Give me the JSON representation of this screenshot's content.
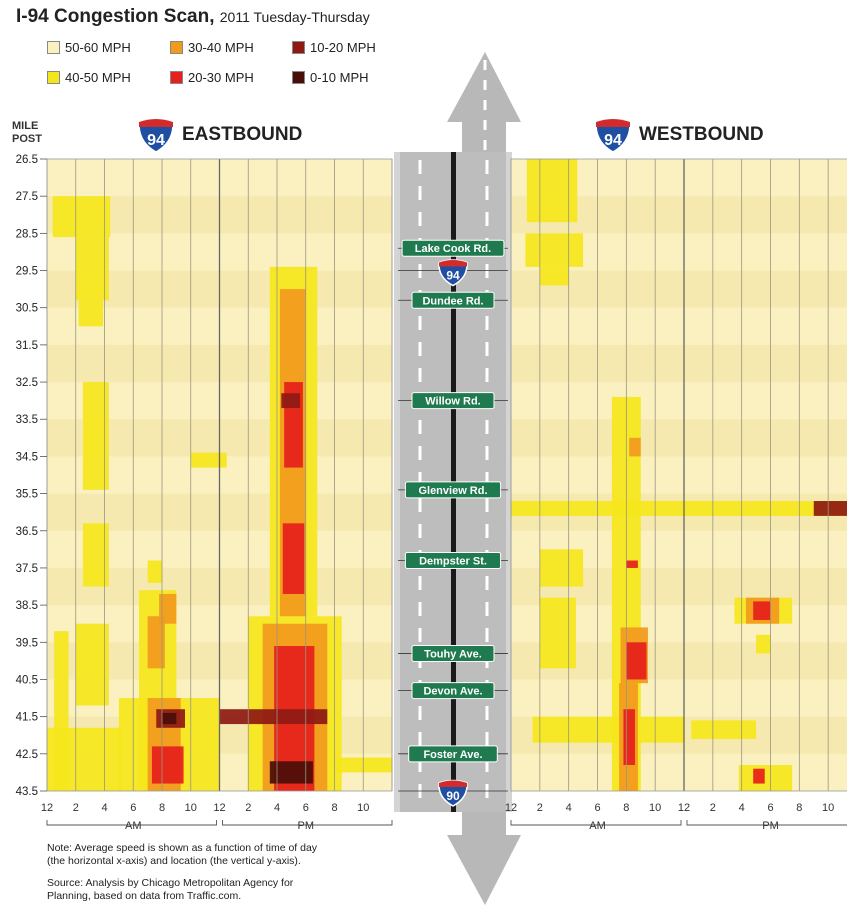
{
  "header": {
    "title": "I-94 Congestion Scan,",
    "subtitle": "2011 Tuesday-Thursday"
  },
  "legend": [
    {
      "label": "50-60 MPH",
      "color": "#fbf1c0"
    },
    {
      "label": "30-40 MPH",
      "color": "#f19a1e"
    },
    {
      "label": "10-20 MPH",
      "color": "#8e1a13"
    },
    {
      "label": "40-50 MPH",
      "color": "#f5e61c"
    },
    {
      "label": "20-30 MPH",
      "color": "#e6201c"
    },
    {
      "label": "0-10 MPH",
      "color": "#4a0e08"
    }
  ],
  "axis": {
    "mile_label_1": "MILE",
    "mile_label_2": "POST",
    "x_ticks": [
      "12",
      "2",
      "4",
      "6",
      "8",
      "10",
      "12",
      "2",
      "4",
      "6",
      "8",
      "10"
    ],
    "west_x_ticks": [
      "12",
      "2",
      "4",
      "6",
      "8",
      "10",
      "12",
      "2",
      "4",
      "6",
      "8",
      "10"
    ],
    "am_label": "AM",
    "pm_label": "PM"
  },
  "eastbound": {
    "shield": "94",
    "label": "EASTBOUND"
  },
  "westbound": {
    "shield": "94",
    "label": "WESTBOUND"
  },
  "road_signs": [
    {
      "label": "Lake Cook Rd.",
      "mile": 28.9
    },
    {
      "label": "Dundee Rd.",
      "mile": 30.3
    },
    {
      "label": "Willow Rd.",
      "mile": 33.0
    },
    {
      "label": "Glenview Rd.",
      "mile": 35.4
    },
    {
      "label": "Dempster St.",
      "mile": 37.3
    },
    {
      "label": "Touhy Ave.",
      "mile": 39.8
    },
    {
      "label": "Devon Ave.",
      "mile": 40.8
    },
    {
      "label": "Foster Ave.",
      "mile": 42.5
    }
  ],
  "road_shields": [
    {
      "number": "94",
      "mile": 29.5
    },
    {
      "number": "90",
      "mile": 43.5
    }
  ],
  "notes": {
    "line1": "Note: Average speed is shown as a function of time of day",
    "line2": "(the horizontal x-axis) and location (the vertical y-axis).",
    "line3": "Source: Analysis by Chicago Metropolitan Agency for",
    "line4": "Planning, based on data from Traffic.com."
  },
  "colors": {
    "background": "#fbf1c0",
    "stripe": "#f6e9b0",
    "road": "#c9c9c9",
    "arrow": "#b8b8b8",
    "sign_green": "#1f7a4f"
  },
  "chart_data": {
    "type": "heatmap",
    "x_unit": "hour of day",
    "xlim": [
      0,
      24
    ],
    "ylim": [
      26.5,
      43.5
    ],
    "y_ticks": [
      26.5,
      27.5,
      28.5,
      29.5,
      30.5,
      31.5,
      32.5,
      33.5,
      34.5,
      35.5,
      36.5,
      37.5,
      38.5,
      39.5,
      40.5,
      41.5,
      42.5,
      43.5
    ],
    "speed_bins": [
      "50-60 MPH",
      "40-50 MPH",
      "30-40 MPH",
      "20-30 MPH",
      "10-20 MPH",
      "0-10 MPH"
    ],
    "eastbound": [
      {
        "t0": 0.4,
        "t1": 4.4,
        "m0": 27.5,
        "m1": 28.6,
        "speed": "40-50 MPH"
      },
      {
        "t0": 2.0,
        "t1": 4.3,
        "m0": 28.6,
        "m1": 30.3,
        "speed": "40-50 MPH"
      },
      {
        "t0": 2.2,
        "t1": 3.9,
        "m0": 30.3,
        "m1": 31.0,
        "speed": "40-50 MPH"
      },
      {
        "t0": 2.5,
        "t1": 4.3,
        "m0": 32.5,
        "m1": 35.4,
        "speed": "40-50 MPH"
      },
      {
        "t0": 2.5,
        "t1": 4.3,
        "m0": 36.3,
        "m1": 38.0,
        "speed": "40-50 MPH"
      },
      {
        "t0": 2.0,
        "t1": 4.3,
        "m0": 39.0,
        "m1": 41.2,
        "speed": "40-50 MPH"
      },
      {
        "t0": 0.5,
        "t1": 1.5,
        "m0": 39.2,
        "m1": 43.5,
        "speed": "40-50 MPH"
      },
      {
        "t0": 0.0,
        "t1": 5.2,
        "m0": 41.8,
        "m1": 43.5,
        "speed": "40-50 MPH"
      },
      {
        "t0": 6.4,
        "t1": 9.0,
        "m0": 38.1,
        "m1": 43.5,
        "speed": "40-50 MPH"
      },
      {
        "t0": 7.0,
        "t1": 8.0,
        "m0": 37.3,
        "m1": 37.9,
        "speed": "40-50 MPH"
      },
      {
        "t0": 5.0,
        "t1": 12.0,
        "m0": 41.0,
        "m1": 43.5,
        "speed": "40-50 MPH"
      },
      {
        "t0": 10.0,
        "t1": 12.5,
        "m0": 34.4,
        "m1": 34.8,
        "speed": "40-50 MPH"
      },
      {
        "t0": 14.0,
        "t1": 20.5,
        "m0": 38.8,
        "m1": 43.5,
        "speed": "40-50 MPH"
      },
      {
        "t0": 15.5,
        "t1": 18.8,
        "m0": 29.4,
        "m1": 38.8,
        "speed": "40-50 MPH"
      },
      {
        "t0": 20.0,
        "t1": 24.0,
        "m0": 42.6,
        "m1": 43.0,
        "speed": "40-50 MPH"
      },
      {
        "t0": 7.0,
        "t1": 8.2,
        "m0": 38.8,
        "m1": 40.2,
        "speed": "30-40 MPH"
      },
      {
        "t0": 7.0,
        "t1": 9.3,
        "m0": 41.0,
        "m1": 43.5,
        "speed": "30-40 MPH"
      },
      {
        "t0": 7.8,
        "t1": 9.0,
        "m0": 38.2,
        "m1": 39.0,
        "speed": "30-40 MPH"
      },
      {
        "t0": 16.2,
        "t1": 18.0,
        "m0": 30.0,
        "m1": 38.8,
        "speed": "30-40 MPH"
      },
      {
        "t0": 15.0,
        "t1": 19.5,
        "m0": 39.0,
        "m1": 43.5,
        "speed": "30-40 MPH"
      },
      {
        "t0": 16.5,
        "t1": 17.8,
        "m0": 32.5,
        "m1": 34.8,
        "speed": "20-30 MPH"
      },
      {
        "t0": 16.4,
        "t1": 17.9,
        "m0": 36.3,
        "m1": 38.2,
        "speed": "20-30 MPH"
      },
      {
        "t0": 15.8,
        "t1": 18.6,
        "m0": 39.6,
        "m1": 43.5,
        "speed": "20-30 MPH"
      },
      {
        "t0": 7.3,
        "t1": 9.5,
        "m0": 42.3,
        "m1": 43.3,
        "speed": "20-30 MPH"
      },
      {
        "t0": 7.6,
        "t1": 9.6,
        "m0": 41.3,
        "m1": 41.8,
        "speed": "10-20 MPH"
      },
      {
        "t0": 16.3,
        "t1": 17.6,
        "m0": 32.8,
        "m1": 33.2,
        "speed": "10-20 MPH"
      },
      {
        "t0": 12.0,
        "t1": 19.5,
        "m0": 41.3,
        "m1": 41.7,
        "speed": "10-20 MPH"
      },
      {
        "t0": 15.5,
        "t1": 18.5,
        "m0": 42.7,
        "m1": 43.3,
        "speed": "0-10 MPH"
      },
      {
        "t0": 8.0,
        "t1": 9.0,
        "m0": 41.4,
        "m1": 41.7,
        "speed": "0-10 MPH"
      }
    ],
    "westbound": [
      {
        "t0": 1.1,
        "t1": 4.6,
        "m0": 26.5,
        "m1": 28.2,
        "speed": "40-50 MPH"
      },
      {
        "t0": 1.0,
        "t1": 5.0,
        "m0": 28.5,
        "m1": 29.4,
        "speed": "40-50 MPH"
      },
      {
        "t0": 2.0,
        "t1": 4.0,
        "m0": 29.4,
        "m1": 29.9,
        "speed": "40-50 MPH"
      },
      {
        "t0": 7.0,
        "t1": 9.0,
        "m0": 32.9,
        "m1": 43.5,
        "speed": "40-50 MPH"
      },
      {
        "t0": 2.0,
        "t1": 5.0,
        "m0": 37.0,
        "m1": 38.0,
        "speed": "40-50 MPH"
      },
      {
        "t0": 2.0,
        "t1": 4.5,
        "m0": 38.3,
        "m1": 40.2,
        "speed": "40-50 MPH"
      },
      {
        "t0": 1.5,
        "t1": 12.0,
        "m0": 41.5,
        "m1": 42.2,
        "speed": "40-50 MPH"
      },
      {
        "t0": 12.5,
        "t1": 17.0,
        "m0": 41.6,
        "m1": 42.1,
        "speed": "40-50 MPH"
      },
      {
        "t0": 15.5,
        "t1": 19.5,
        "m0": 38.3,
        "m1": 39.0,
        "speed": "40-50 MPH"
      },
      {
        "t0": 17.0,
        "t1": 18.0,
        "m0": 39.3,
        "m1": 39.8,
        "speed": "40-50 MPH"
      },
      {
        "t0": 15.8,
        "t1": 19.5,
        "m0": 42.8,
        "m1": 43.5,
        "speed": "40-50 MPH"
      },
      {
        "t0": 0.0,
        "t1": 24.0,
        "m0": 35.7,
        "m1": 36.1,
        "speed": "40-50 MPH"
      },
      {
        "t0": 8.2,
        "t1": 9.0,
        "m0": 34.0,
        "m1": 34.5,
        "speed": "30-40 MPH"
      },
      {
        "t0": 7.6,
        "t1": 9.5,
        "m0": 39.1,
        "m1": 40.6,
        "speed": "30-40 MPH"
      },
      {
        "t0": 7.5,
        "t1": 8.8,
        "m0": 40.6,
        "m1": 43.5,
        "speed": "30-40 MPH"
      },
      {
        "t0": 16.3,
        "t1": 18.6,
        "m0": 38.3,
        "m1": 39.0,
        "speed": "30-40 MPH"
      },
      {
        "t0": 8.0,
        "t1": 9.4,
        "m0": 39.5,
        "m1": 40.5,
        "speed": "20-30 MPH"
      },
      {
        "t0": 7.8,
        "t1": 8.6,
        "m0": 41.3,
        "m1": 42.8,
        "speed": "20-30 MPH"
      },
      {
        "t0": 16.8,
        "t1": 18.0,
        "m0": 38.4,
        "m1": 38.9,
        "speed": "20-30 MPH"
      },
      {
        "t0": 8.0,
        "t1": 8.8,
        "m0": 37.3,
        "m1": 37.5,
        "speed": "20-30 MPH"
      },
      {
        "t0": 21.0,
        "t1": 23.5,
        "m0": 35.7,
        "m1": 36.1,
        "speed": "10-20 MPH"
      },
      {
        "t0": 16.8,
        "t1": 17.6,
        "m0": 42.9,
        "m1": 43.3,
        "speed": "20-30 MPH"
      }
    ]
  }
}
